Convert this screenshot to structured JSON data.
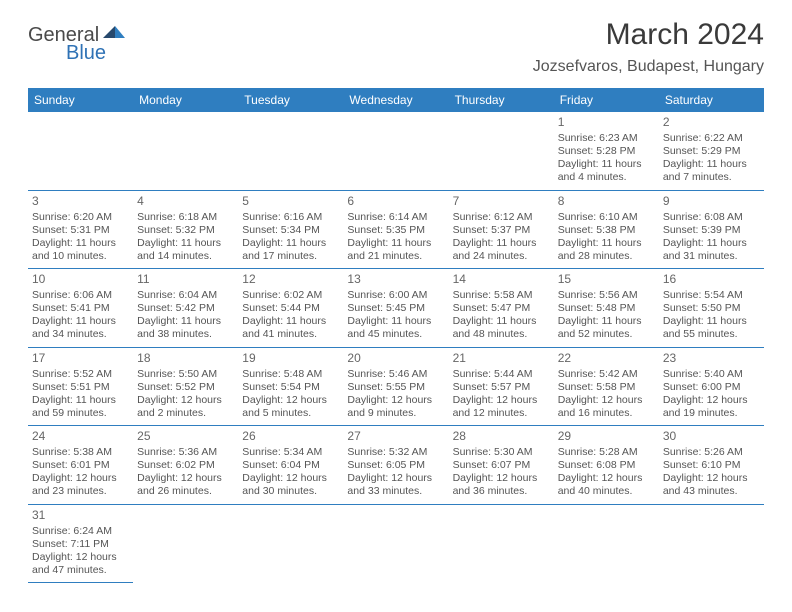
{
  "brand": {
    "part1": "General",
    "part2": "Blue"
  },
  "title": "March 2024",
  "location": "Jozsefvaros, Budapest, Hungary",
  "colors": {
    "header_bg": "#2f7ec0",
    "header_text": "#ffffff",
    "border": "#2f7ec0",
    "body_text": "#555555",
    "title_text": "#3a3a3a",
    "brand_gray": "#4a4a4a",
    "brand_blue": "#2f72b5",
    "background": "#ffffff"
  },
  "weekdays": [
    "Sunday",
    "Monday",
    "Tuesday",
    "Wednesday",
    "Thursday",
    "Friday",
    "Saturday"
  ],
  "weeks": [
    [
      null,
      null,
      null,
      null,
      null,
      {
        "n": "1",
        "sunrise": "Sunrise: 6:23 AM",
        "sunset": "Sunset: 5:28 PM",
        "day": "Daylight: 11 hours and 4 minutes."
      },
      {
        "n": "2",
        "sunrise": "Sunrise: 6:22 AM",
        "sunset": "Sunset: 5:29 PM",
        "day": "Daylight: 11 hours and 7 minutes."
      }
    ],
    [
      {
        "n": "3",
        "sunrise": "Sunrise: 6:20 AM",
        "sunset": "Sunset: 5:31 PM",
        "day": "Daylight: 11 hours and 10 minutes."
      },
      {
        "n": "4",
        "sunrise": "Sunrise: 6:18 AM",
        "sunset": "Sunset: 5:32 PM",
        "day": "Daylight: 11 hours and 14 minutes."
      },
      {
        "n": "5",
        "sunrise": "Sunrise: 6:16 AM",
        "sunset": "Sunset: 5:34 PM",
        "day": "Daylight: 11 hours and 17 minutes."
      },
      {
        "n": "6",
        "sunrise": "Sunrise: 6:14 AM",
        "sunset": "Sunset: 5:35 PM",
        "day": "Daylight: 11 hours and 21 minutes."
      },
      {
        "n": "7",
        "sunrise": "Sunrise: 6:12 AM",
        "sunset": "Sunset: 5:37 PM",
        "day": "Daylight: 11 hours and 24 minutes."
      },
      {
        "n": "8",
        "sunrise": "Sunrise: 6:10 AM",
        "sunset": "Sunset: 5:38 PM",
        "day": "Daylight: 11 hours and 28 minutes."
      },
      {
        "n": "9",
        "sunrise": "Sunrise: 6:08 AM",
        "sunset": "Sunset: 5:39 PM",
        "day": "Daylight: 11 hours and 31 minutes."
      }
    ],
    [
      {
        "n": "10",
        "sunrise": "Sunrise: 6:06 AM",
        "sunset": "Sunset: 5:41 PM",
        "day": "Daylight: 11 hours and 34 minutes."
      },
      {
        "n": "11",
        "sunrise": "Sunrise: 6:04 AM",
        "sunset": "Sunset: 5:42 PM",
        "day": "Daylight: 11 hours and 38 minutes."
      },
      {
        "n": "12",
        "sunrise": "Sunrise: 6:02 AM",
        "sunset": "Sunset: 5:44 PM",
        "day": "Daylight: 11 hours and 41 minutes."
      },
      {
        "n": "13",
        "sunrise": "Sunrise: 6:00 AM",
        "sunset": "Sunset: 5:45 PM",
        "day": "Daylight: 11 hours and 45 minutes."
      },
      {
        "n": "14",
        "sunrise": "Sunrise: 5:58 AM",
        "sunset": "Sunset: 5:47 PM",
        "day": "Daylight: 11 hours and 48 minutes."
      },
      {
        "n": "15",
        "sunrise": "Sunrise: 5:56 AM",
        "sunset": "Sunset: 5:48 PM",
        "day": "Daylight: 11 hours and 52 minutes."
      },
      {
        "n": "16",
        "sunrise": "Sunrise: 5:54 AM",
        "sunset": "Sunset: 5:50 PM",
        "day": "Daylight: 11 hours and 55 minutes."
      }
    ],
    [
      {
        "n": "17",
        "sunrise": "Sunrise: 5:52 AM",
        "sunset": "Sunset: 5:51 PM",
        "day": "Daylight: 11 hours and 59 minutes."
      },
      {
        "n": "18",
        "sunrise": "Sunrise: 5:50 AM",
        "sunset": "Sunset: 5:52 PM",
        "day": "Daylight: 12 hours and 2 minutes."
      },
      {
        "n": "19",
        "sunrise": "Sunrise: 5:48 AM",
        "sunset": "Sunset: 5:54 PM",
        "day": "Daylight: 12 hours and 5 minutes."
      },
      {
        "n": "20",
        "sunrise": "Sunrise: 5:46 AM",
        "sunset": "Sunset: 5:55 PM",
        "day": "Daylight: 12 hours and 9 minutes."
      },
      {
        "n": "21",
        "sunrise": "Sunrise: 5:44 AM",
        "sunset": "Sunset: 5:57 PM",
        "day": "Daylight: 12 hours and 12 minutes."
      },
      {
        "n": "22",
        "sunrise": "Sunrise: 5:42 AM",
        "sunset": "Sunset: 5:58 PM",
        "day": "Daylight: 12 hours and 16 minutes."
      },
      {
        "n": "23",
        "sunrise": "Sunrise: 5:40 AM",
        "sunset": "Sunset: 6:00 PM",
        "day": "Daylight: 12 hours and 19 minutes."
      }
    ],
    [
      {
        "n": "24",
        "sunrise": "Sunrise: 5:38 AM",
        "sunset": "Sunset: 6:01 PM",
        "day": "Daylight: 12 hours and 23 minutes."
      },
      {
        "n": "25",
        "sunrise": "Sunrise: 5:36 AM",
        "sunset": "Sunset: 6:02 PM",
        "day": "Daylight: 12 hours and 26 minutes."
      },
      {
        "n": "26",
        "sunrise": "Sunrise: 5:34 AM",
        "sunset": "Sunset: 6:04 PM",
        "day": "Daylight: 12 hours and 30 minutes."
      },
      {
        "n": "27",
        "sunrise": "Sunrise: 5:32 AM",
        "sunset": "Sunset: 6:05 PM",
        "day": "Daylight: 12 hours and 33 minutes."
      },
      {
        "n": "28",
        "sunrise": "Sunrise: 5:30 AM",
        "sunset": "Sunset: 6:07 PM",
        "day": "Daylight: 12 hours and 36 minutes."
      },
      {
        "n": "29",
        "sunrise": "Sunrise: 5:28 AM",
        "sunset": "Sunset: 6:08 PM",
        "day": "Daylight: 12 hours and 40 minutes."
      },
      {
        "n": "30",
        "sunrise": "Sunrise: 5:26 AM",
        "sunset": "Sunset: 6:10 PM",
        "day": "Daylight: 12 hours and 43 minutes."
      }
    ],
    [
      {
        "n": "31",
        "sunrise": "Sunrise: 6:24 AM",
        "sunset": "Sunset: 7:11 PM",
        "day": "Daylight: 12 hours and 47 minutes."
      },
      null,
      null,
      null,
      null,
      null,
      null
    ]
  ]
}
